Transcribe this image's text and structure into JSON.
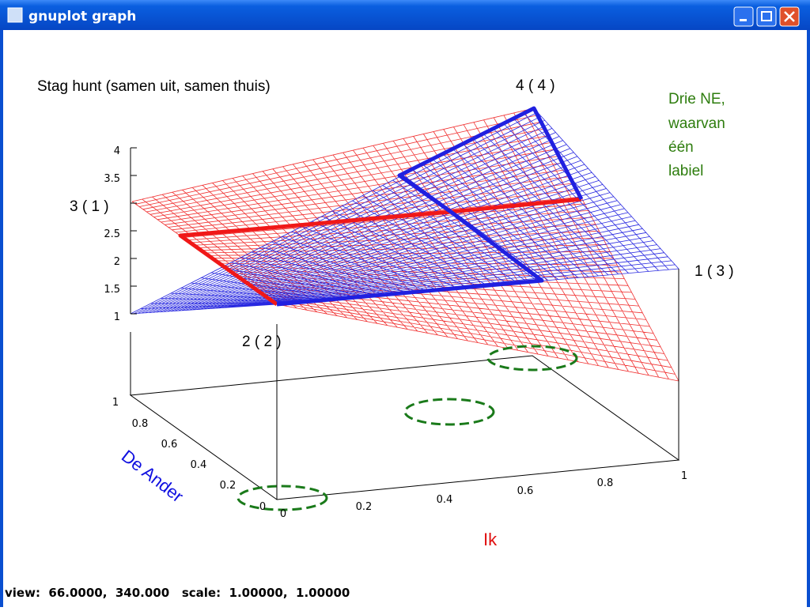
{
  "window": {
    "title": "gnuplot graph"
  },
  "plot": {
    "title": "Stag hunt (samen uit, samen thuis)",
    "corner_labels": [
      "4 ( 4 )",
      "3 ( 1 )",
      "1 ( 3 )",
      "2 ( 2 )"
    ],
    "annotation": [
      "Drie NE,",
      "waarvan",
      "één",
      "labiel"
    ],
    "z_ticks": [
      "4",
      "3.5",
      "2.5",
      "2",
      "1.5",
      "1"
    ],
    "y_ticks": [
      "1",
      "0.8",
      "0.6",
      "0.4",
      "0.2",
      "0"
    ],
    "x_ticks": [
      "0",
      "0.2",
      "0.4",
      "0.6",
      "0.8",
      "1"
    ],
    "y_label": "De Ander",
    "x_label": "Ik"
  },
  "status": "view:  66.0000,  340.000   scale:  1.00000,  1.00000"
}
